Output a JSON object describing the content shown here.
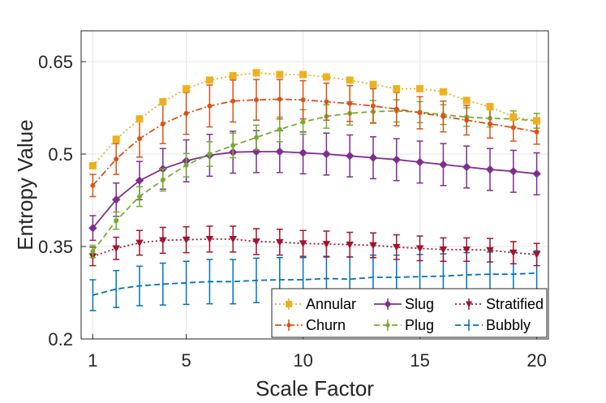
{
  "chart_data": {
    "type": "line",
    "title": "",
    "xlabel": "Scale Factor",
    "ylabel": "Entropy Value",
    "xlim": [
      0.5,
      20.5
    ],
    "ylim": [
      0.2,
      0.7
    ],
    "xticks": [
      1,
      5,
      10,
      15,
      20
    ],
    "xtick_labels": [
      "1",
      "5",
      "10",
      "15",
      "20"
    ],
    "yticks": [
      0.2,
      0.35,
      0.5,
      0.65
    ],
    "ytick_labels": [
      "0.2",
      "0.35",
      "0.5",
      "0.65"
    ],
    "grid": true,
    "legend_position": "bottom-right",
    "x": [
      1,
      2,
      3,
      4,
      5,
      6,
      7,
      8,
      9,
      10,
      11,
      12,
      13,
      14,
      15,
      16,
      17,
      18,
      19,
      20
    ],
    "series": [
      {
        "name": "Annular",
        "color": "#EDB120",
        "line_style": "dotted",
        "marker": "square",
        "values": [
          0.481,
          0.524,
          0.557,
          0.585,
          0.606,
          0.62,
          0.627,
          0.632,
          0.629,
          0.629,
          0.625,
          0.62,
          0.613,
          0.606,
          0.606,
          0.601,
          0.587,
          0.577,
          0.56,
          0.554
        ],
        "errors": [
          0.004,
          0.004,
          0.004,
          0.004,
          0.004,
          0.004,
          0.004,
          0.004,
          0.004,
          0.004,
          0.004,
          0.004,
          0.004,
          0.004,
          0.004,
          0.004,
          0.004,
          0.004,
          0.004,
          0.004
        ]
      },
      {
        "name": "Churn",
        "color": "#D95319",
        "line_style": "dashdot",
        "marker": "dot",
        "values": [
          0.449,
          0.492,
          0.525,
          0.549,
          0.566,
          0.578,
          0.586,
          0.588,
          0.589,
          0.588,
          0.585,
          0.582,
          0.578,
          0.573,
          0.567,
          0.561,
          0.555,
          0.549,
          0.543,
          0.536
        ],
        "errors": [
          0.018,
          0.025,
          0.03,
          0.032,
          0.034,
          0.034,
          0.034,
          0.033,
          0.032,
          0.031,
          0.03,
          0.029,
          0.028,
          0.027,
          0.026,
          0.025,
          0.024,
          0.023,
          0.022,
          0.02
        ]
      },
      {
        "name": "Plug",
        "color": "#77AC30",
        "line_style": "dashed",
        "marker": "dot",
        "values": [
          0.342,
          0.392,
          0.431,
          0.458,
          0.482,
          0.5,
          0.514,
          0.527,
          0.54,
          0.552,
          0.561,
          0.566,
          0.569,
          0.57,
          0.568,
          0.564,
          0.56,
          0.558,
          0.557,
          0.554
        ],
        "errors": [
          0.01,
          0.014,
          0.016,
          0.018,
          0.019,
          0.02,
          0.02,
          0.02,
          0.02,
          0.02,
          0.019,
          0.019,
          0.018,
          0.018,
          0.017,
          0.016,
          0.015,
          0.014,
          0.013,
          0.012
        ]
      },
      {
        "name": "Slug",
        "color": "#7E2F8E",
        "line_style": "solid",
        "marker": "diamond",
        "values": [
          0.38,
          0.426,
          0.457,
          0.476,
          0.489,
          0.498,
          0.503,
          0.504,
          0.504,
          0.502,
          0.5,
          0.497,
          0.494,
          0.491,
          0.487,
          0.483,
          0.479,
          0.475,
          0.472,
          0.468
        ],
        "errors": [
          0.02,
          0.027,
          0.031,
          0.033,
          0.034,
          0.034,
          0.034,
          0.034,
          0.034,
          0.034,
          0.034,
          0.034,
          0.034,
          0.034,
          0.034,
          0.034,
          0.034,
          0.034,
          0.034,
          0.034
        ]
      },
      {
        "name": "Stratified",
        "color": "#A2142F",
        "line_style": "dotted",
        "marker": "triangle-down",
        "values": [
          0.334,
          0.347,
          0.356,
          0.36,
          0.361,
          0.362,
          0.362,
          0.358,
          0.357,
          0.355,
          0.354,
          0.353,
          0.352,
          0.349,
          0.347,
          0.345,
          0.345,
          0.344,
          0.34,
          0.337
        ],
        "errors": [
          0.015,
          0.018,
          0.02,
          0.021,
          0.021,
          0.021,
          0.021,
          0.021,
          0.021,
          0.021,
          0.021,
          0.02,
          0.02,
          0.02,
          0.02,
          0.019,
          0.019,
          0.019,
          0.018,
          0.018
        ]
      },
      {
        "name": "Bubbly",
        "color": "#0072BD",
        "line_style": "dashed",
        "marker": "none",
        "values": [
          0.271,
          0.281,
          0.286,
          0.289,
          0.291,
          0.293,
          0.293,
          0.295,
          0.296,
          0.296,
          0.298,
          0.297,
          0.3,
          0.3,
          0.301,
          0.302,
          0.304,
          0.305,
          0.305,
          0.307
        ],
        "errors": [
          0.025,
          0.03,
          0.032,
          0.034,
          0.035,
          0.036,
          0.036,
          0.036,
          0.036,
          0.036,
          0.036,
          0.036,
          0.036,
          0.036,
          0.036,
          0.036,
          0.036,
          0.036,
          0.036,
          0.036
        ]
      }
    ],
    "legend_order": [
      "Annular",
      "Slug",
      "Stratified",
      "Churn",
      "Plug",
      "Bubbly"
    ]
  }
}
